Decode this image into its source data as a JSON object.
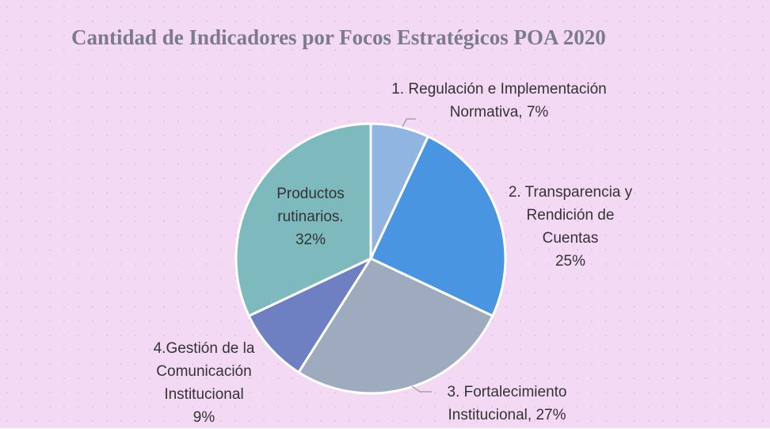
{
  "chart_data": {
    "type": "pie",
    "title": "Cantidad de Indicadores por Focos Estratégicos POA 2020",
    "categories": [
      "1. Regulación e Implementación Normativa,",
      "2. Transparencia y Rendición de Cuentas",
      "3. Fortalecimiento Institucional,",
      "4.Gestión de la Comunicación Institucional",
      "Productos rutinarios."
    ],
    "values": [
      7,
      25,
      27,
      9,
      32
    ],
    "value_labels": [
      "7%",
      "25%",
      "27%",
      "9%",
      "32%"
    ],
    "colors": [
      "#8fb5e0",
      "#4a95e2",
      "#9eaabd",
      "#6f80c2",
      "#7db9bd"
    ]
  }
}
